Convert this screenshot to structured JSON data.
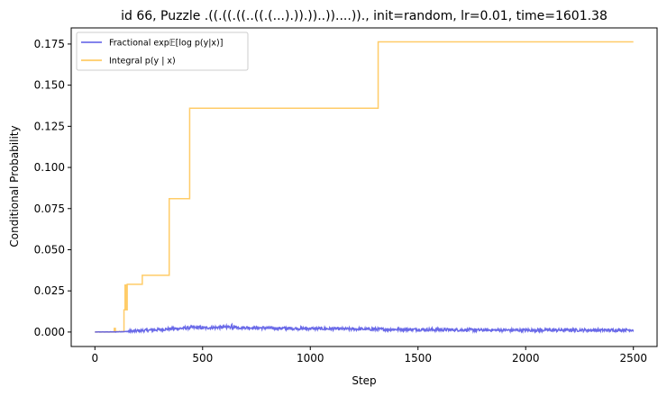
{
  "chart_data": {
    "type": "line",
    "title": "id 66, Puzzle .((.((.((..((.(...).)).))..))....))., init=random, lr=0.01, time=1601.38",
    "xlabel": "Step",
    "ylabel": "Conditional Probability",
    "xlim": [
      -110,
      2610
    ],
    "ylim": [
      -0.0088,
      0.1848
    ],
    "xticks": [
      0,
      500,
      1000,
      1500,
      2000,
      2500
    ],
    "yticks": [
      0.0,
      0.025,
      0.05,
      0.075,
      0.1,
      0.125,
      0.15,
      0.175
    ],
    "ytick_labels": [
      "0.000",
      "0.025",
      "0.050",
      "0.075",
      "0.100",
      "0.125",
      "0.150",
      "0.175"
    ],
    "legend_position": "upper-left",
    "grid": false,
    "series": [
      {
        "name": "Fractional exp𝔼[log p(y|x)]",
        "color": "#5a5ae6",
        "noisy": true,
        "x": [
          0,
          100,
          150,
          200,
          250,
          300,
          400,
          450,
          500,
          600,
          700,
          800,
          900,
          1000,
          1200,
          1400,
          1600,
          1800,
          2000,
          2200,
          2400,
          2500
        ],
        "y": [
          0.0,
          0.0001,
          0.0003,
          0.0007,
          0.0011,
          0.0015,
          0.0022,
          0.0028,
          0.0025,
          0.0029,
          0.0027,
          0.0024,
          0.0022,
          0.0021,
          0.0018,
          0.0016,
          0.0014,
          0.0012,
          0.0011,
          0.0012,
          0.0011,
          0.0013
        ]
      },
      {
        "name": "Integral p(y | x)",
        "color": "#ffc34d",
        "noisy": false,
        "x": [
          0,
          90,
          90,
          95,
          95,
          135,
          135,
          140,
          140,
          145,
          145,
          150,
          150,
          155,
          155,
          220,
          220,
          345,
          345,
          440,
          440,
          1315,
          1315,
          2500
        ],
        "y": [
          0.0,
          0.0,
          0.0022,
          0.0022,
          0.0003,
          0.0003,
          0.0135,
          0.0135,
          0.0285,
          0.0285,
          0.0135,
          0.0135,
          0.029,
          0.029,
          0.029,
          0.029,
          0.0345,
          0.0345,
          0.081,
          0.081,
          0.136,
          0.136,
          0.1763,
          0.1763
        ]
      }
    ]
  },
  "legend": {
    "fractional_label": "Fractional exp𝔼[log p(y|x)]",
    "integral_label": "Integral p(y | x)"
  }
}
